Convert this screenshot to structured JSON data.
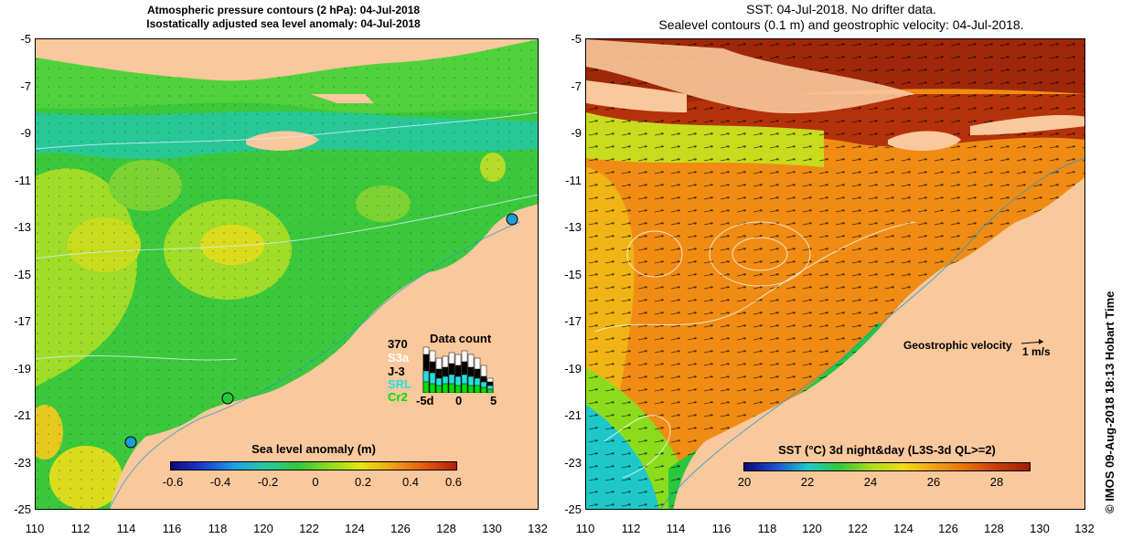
{
  "left_panel": {
    "title_line1": "Atmospheric pressure contours (2 hPa): 04-Jul-2018",
    "title_line2": "Isostatically adjusted sea level anomaly: 04-Jul-2018",
    "colorbar_title": "Sea level anomaly (m)",
    "colorbar_ticks": [
      "-0.6",
      "-0.4",
      "-0.2",
      "0",
      "0.2",
      "0.4",
      "0.6"
    ],
    "data_count": {
      "title": "Data count",
      "max_label": "370",
      "satellites": [
        {
          "name": "S3a",
          "color": "#ffffff"
        },
        {
          "name": "J-3",
          "color": "#000000"
        },
        {
          "name": "SRL",
          "color": "#22e0e0"
        },
        {
          "name": "Cr2",
          "color": "#00dd00"
        }
      ],
      "x_ticks": [
        "-5d",
        "0",
        "5"
      ]
    }
  },
  "right_panel": {
    "title_line1": "SST: 04-Jul-2018. No drifter data.",
    "title_line2": "Sealevel contours (0.1 m) and geostrophic velocity: 04-Jul-2018.",
    "colorbar_title": "SST (°C) 3d night&day (L3S-3d QL>=2)",
    "colorbar_ticks": [
      "20",
      "22",
      "24",
      "26",
      "28"
    ],
    "velocity_label": "Geostrophic velocity",
    "velocity_scale": "1 m/s"
  },
  "axes": {
    "lat_ticks": [
      "-5",
      "-7",
      "-9",
      "-11",
      "-13",
      "-15",
      "-17",
      "-19",
      "-21",
      "-23",
      "-25"
    ],
    "lon_ticks": [
      "110",
      "112",
      "114",
      "116",
      "118",
      "120",
      "122",
      "124",
      "126",
      "128",
      "130",
      "132"
    ]
  },
  "footer_vertical": "©  IMOS 09-Aug-2018 18:13 Hobart Time",
  "colors": {
    "land": "#f9c89c",
    "ocean_green": "#3cc83c",
    "sst_orange": "#f08c14",
    "sst_red": "#b4320a"
  }
}
